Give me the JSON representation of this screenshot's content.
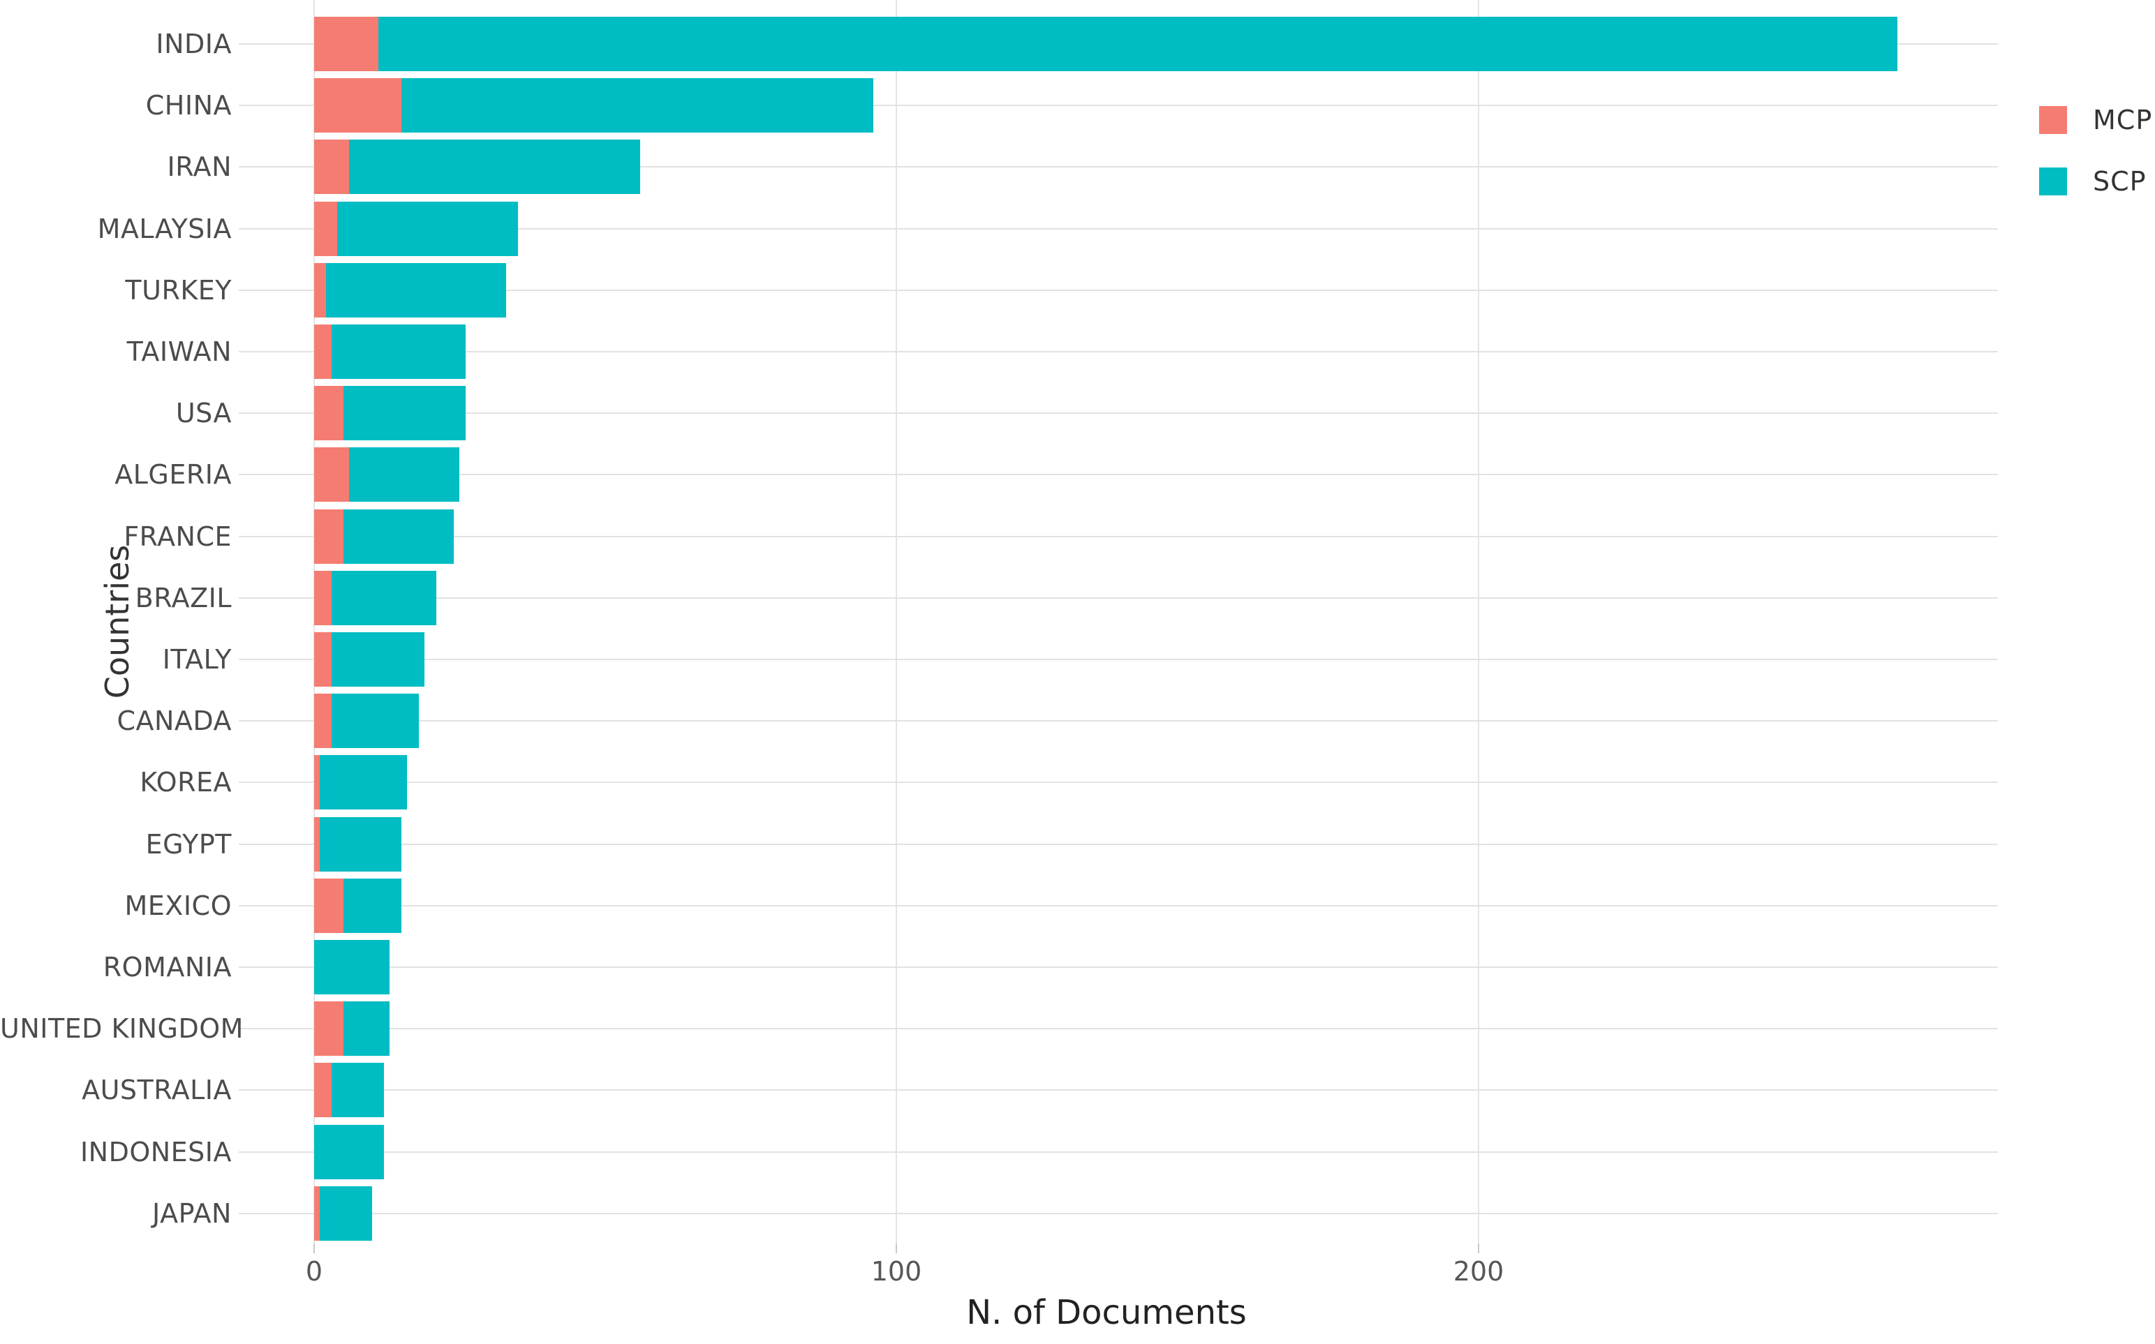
{
  "colors": {
    "mcp": "#f57c72",
    "scp": "#00bcc3",
    "grid": "#e5e5e5",
    "leader_line": "#e2e2e2",
    "tick": "#c9c9c9",
    "label_text": "#4c4c4c",
    "tick_text": "#565656",
    "axis_title_text": "#222222"
  },
  "legend": {
    "items": [
      {
        "id": "mcp",
        "label": "MCP",
        "color": "#f57c72"
      },
      {
        "id": "scp",
        "label": "SCP",
        "color": "#00bcc3"
      }
    ]
  },
  "chart_data": {
    "type": "bar",
    "orientation": "horizontal",
    "stacked": true,
    "title": "",
    "xlabel": "N. of Documents",
    "ylabel": "Countries",
    "xlim": [
      0,
      290
    ],
    "grid": true,
    "legend_position": "right-top",
    "x_ticks": [
      {
        "value": 0,
        "label": "0"
      },
      {
        "value": 100,
        "label": "100"
      },
      {
        "value": 200,
        "label": "200"
      }
    ],
    "categories": [
      "INDIA",
      "CHINA",
      "IRAN",
      "MALAYSIA",
      "TURKEY",
      "TAIWAN",
      "USA",
      "ALGERIA",
      "FRANCE",
      "BRAZIL",
      "ITALY",
      "CANADA",
      "KOREA",
      "EGYPT",
      "MEXICO",
      "ROMANIA",
      "UNITED KINGDOM",
      "AUSTRALIA",
      "INDONESIA",
      "JAPAN"
    ],
    "series": [
      {
        "name": "MCP",
        "color": "#f57c72",
        "values": [
          11,
          15,
          6,
          4,
          2,
          3,
          5,
          6,
          5,
          3,
          3,
          3,
          1,
          1,
          5,
          0,
          5,
          3,
          0,
          1
        ]
      },
      {
        "name": "SCP",
        "color": "#00bcc3",
        "values": [
          261,
          81,
          50,
          31,
          31,
          23,
          21,
          19,
          19,
          18,
          16,
          15,
          15,
          14,
          10,
          13,
          8,
          9,
          12,
          9
        ]
      }
    ],
    "totals": [
      272,
      96,
      56,
      35,
      33,
      26,
      26,
      25,
      24,
      21,
      19,
      18,
      16,
      15,
      15,
      13,
      13,
      12,
      12,
      10
    ]
  }
}
